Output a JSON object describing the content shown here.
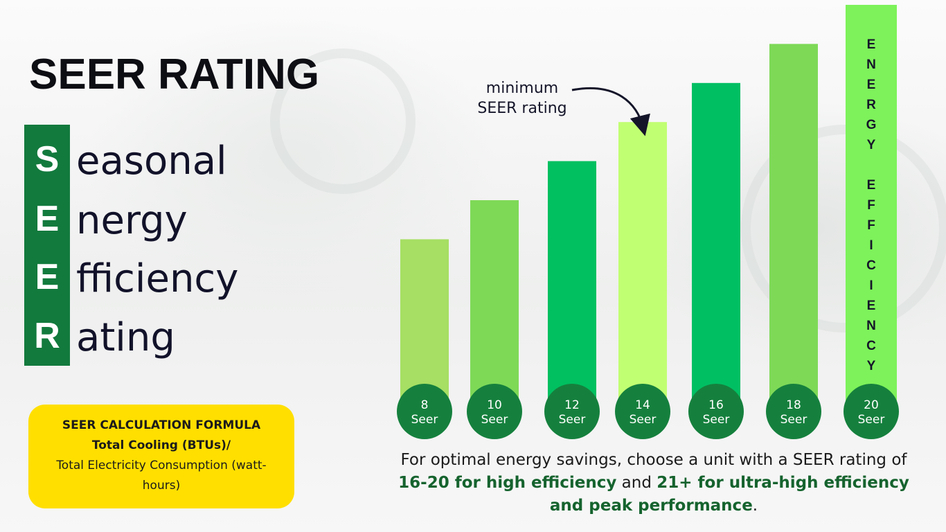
{
  "title": "SEER RATING",
  "acronym": [
    {
      "letter": "S",
      "rest": "easonal"
    },
    {
      "letter": "E",
      "rest": "nergy"
    },
    {
      "letter": "E",
      "rest": "fficiency"
    },
    {
      "letter": "R",
      "rest": "ating"
    }
  ],
  "formula": {
    "heading": "SEER CALCULATION FORMULA",
    "numerator": "Total Cooling (BTUs)/",
    "denominator": "Total Electricity Consumption (watt-hours)"
  },
  "annotation": "minimum SEER rating",
  "vertical_label": "ENERGY EFFICIENCY",
  "caption": {
    "part1": "For optimal energy savings, choose a unit with a SEER rating of ",
    "bold1": "16-20 for high efficiency",
    "part2": " and ",
    "bold2": "21+ for ultra-high efficiency and peak performance",
    "part3": "."
  },
  "chart_data": {
    "type": "bar",
    "title": "",
    "xlabel": "",
    "ylabel": "",
    "categories": [
      "8\nSeer",
      "10\nSeer",
      "12\nSeer",
      "14\nSeer",
      "16\nSeer",
      "18\nSeer",
      "20\nSeer"
    ],
    "values": [
      8,
      10,
      12,
      14,
      16,
      18,
      20
    ],
    "highlight_category": "14\nSeer",
    "colors": [
      "#a6df63",
      "#7ed957",
      "#00c060",
      "#c1ff72",
      "#00bf63",
      "#7ed957",
      "#7df25a"
    ],
    "label_circle_color": "#15803d"
  }
}
